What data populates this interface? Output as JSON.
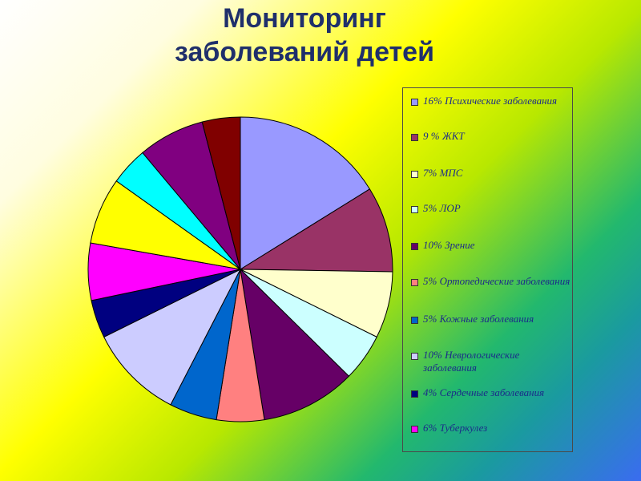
{
  "chart_data": {
    "type": "pie",
    "title": [
      "Мониторинг",
      "заболеваний детей"
    ],
    "slices": [
      {
        "label": "16% Психические заболевания",
        "value": 16,
        "color": "#9999ff"
      },
      {
        "label": "9 % ЖКТ",
        "value": 9,
        "color": "#993366"
      },
      {
        "label": "7% МПС",
        "value": 7,
        "color": "#ffffcc"
      },
      {
        "label": "5% ЛОР",
        "value": 5,
        "color": "#ccffff"
      },
      {
        "label": "10% Зрение",
        "value": 10,
        "color": "#660066"
      },
      {
        "label": "5% Ортопедические заболевания",
        "value": 5,
        "color": "#ff8080"
      },
      {
        "label": "5% Кожные заболевания",
        "value": 5,
        "color": "#0066cc"
      },
      {
        "label": "10% Неврологические заболевания",
        "value": 10,
        "color": "#ccccff"
      },
      {
        "label": "4% Сердечные заболевания",
        "value": 4,
        "color": "#000080"
      },
      {
        "label": "6% Туберкулез",
        "value": 6,
        "color": "#ff00ff"
      },
      {
        "label": "",
        "value": 7,
        "color": "#ffff00"
      },
      {
        "label": "",
        "value": 4,
        "color": "#00ffff"
      },
      {
        "label": "",
        "value": 7,
        "color": "#800080"
      },
      {
        "label": "",
        "value": 4,
        "color": "#800000"
      }
    ],
    "legend_position": "right"
  }
}
